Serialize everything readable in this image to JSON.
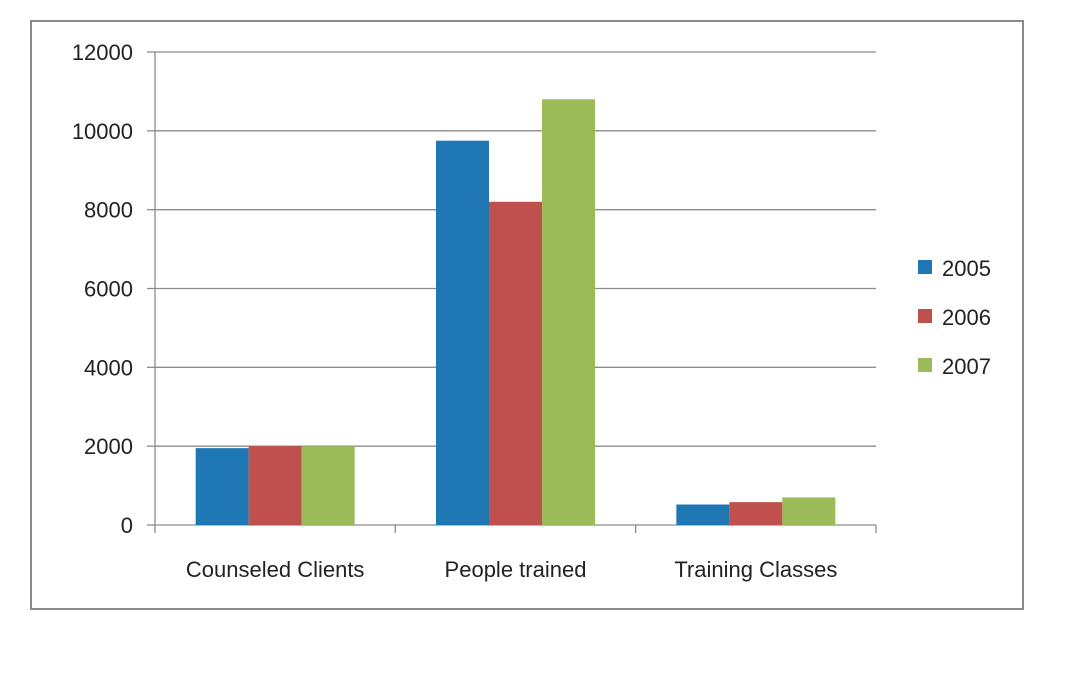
{
  "chart_data": {
    "type": "bar",
    "categories": [
      "Counseled Clients",
      "People trained",
      "Training Classes"
    ],
    "series": [
      {
        "name": "2005",
        "values": [
          1950,
          9750,
          520
        ],
        "color": "#1f77b4"
      },
      {
        "name": "2006",
        "values": [
          2000,
          8200,
          580
        ],
        "color": "#c0504d"
      },
      {
        "name": "2007",
        "values": [
          2000,
          10800,
          700
        ],
        "color": "#9bbb59"
      }
    ],
    "ylim": [
      0,
      12000
    ],
    "yticks": [
      0,
      2000,
      4000,
      6000,
      8000,
      10000,
      12000
    ],
    "grid": true,
    "legend_position": "right"
  }
}
